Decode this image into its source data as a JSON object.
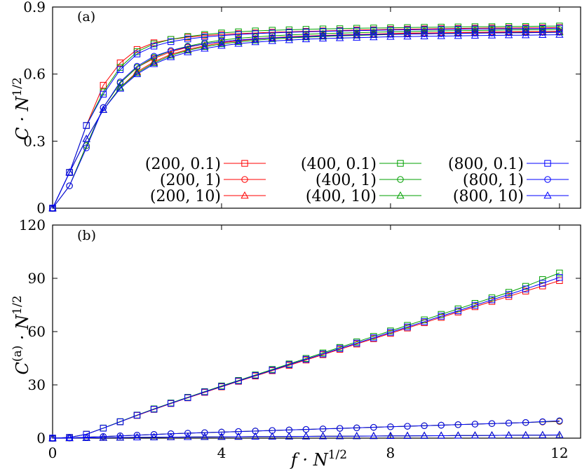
{
  "chart_data": [
    {
      "type": "line",
      "panel_label": "(a)",
      "ylabel": "C · N^1/2",
      "ylabel_parts": {
        "base": "C · N",
        "sup": "1/2"
      },
      "xlim": [
        0,
        12.5
      ],
      "ylim": [
        0,
        0.9
      ],
      "xticks": [
        0,
        4,
        8,
        12
      ],
      "yticks": [
        0,
        0.3,
        0.6,
        0.9
      ],
      "ytick_labels": [
        "0",
        "0.3",
        "0.6",
        "0.9"
      ],
      "legend": "bottom-right",
      "x": [
        0,
        0.4,
        0.8,
        1.2,
        1.6,
        2.0,
        2.4,
        2.8,
        3.2,
        3.6,
        4.0,
        4.4,
        4.8,
        5.2,
        5.6,
        6.0,
        6.4,
        6.8,
        7.2,
        7.6,
        8.0,
        8.4,
        8.8,
        9.2,
        9.6,
        10.0,
        10.4,
        10.8,
        11.2,
        11.6,
        12.0
      ],
      "series": [
        {
          "name": "(200,  0.1)",
          "color": "#ff0000",
          "marker": "square",
          "values": [
            0,
            0.16,
            0.37,
            0.55,
            0.65,
            0.71,
            0.74,
            0.755,
            0.765,
            0.772,
            0.777,
            0.781,
            0.784,
            0.787,
            0.789,
            0.791,
            0.793,
            0.795,
            0.797,
            0.798,
            0.8,
            0.801,
            0.802,
            0.803,
            0.804,
            0.805,
            0.806,
            0.806,
            0.807,
            0.807,
            0.808
          ]
        },
        {
          "name": "(200,  1)",
          "color": "#ff0000",
          "marker": "circle",
          "values": [
            0,
            0.1,
            0.28,
            0.45,
            0.56,
            0.63,
            0.67,
            0.7,
            0.72,
            0.735,
            0.745,
            0.752,
            0.758,
            0.763,
            0.767,
            0.77,
            0.773,
            0.775,
            0.777,
            0.779,
            0.781,
            0.783,
            0.784,
            0.785,
            0.786,
            0.787,
            0.788,
            0.789,
            0.79,
            0.79,
            0.791
          ]
        },
        {
          "name": "(200,  10)",
          "color": "#ff0000",
          "marker": "triangle",
          "values": [
            0,
            0.16,
            0.31,
            0.44,
            0.54,
            0.61,
            0.655,
            0.688,
            0.71,
            0.727,
            0.74,
            0.749,
            0.756,
            0.762,
            0.766,
            0.769,
            0.772,
            0.774,
            0.776,
            0.778,
            0.78,
            0.782,
            0.783,
            0.784,
            0.785,
            0.786,
            0.787,
            0.788,
            0.789,
            0.789,
            0.79
          ]
        },
        {
          "name": "(400,  0.1)",
          "color": "#00a000",
          "marker": "square",
          "values": [
            0,
            0.16,
            0.37,
            0.52,
            0.63,
            0.7,
            0.735,
            0.755,
            0.768,
            0.777,
            0.784,
            0.789,
            0.793,
            0.796,
            0.798,
            0.8,
            0.802,
            0.803,
            0.805,
            0.806,
            0.807,
            0.808,
            0.809,
            0.81,
            0.811,
            0.812,
            0.812,
            0.813,
            0.813,
            0.814,
            0.815
          ]
        },
        {
          "name": "(400,  1)",
          "color": "#00a000",
          "marker": "circle",
          "values": [
            0,
            0.1,
            0.28,
            0.45,
            0.56,
            0.63,
            0.675,
            0.705,
            0.725,
            0.74,
            0.752,
            0.76,
            0.766,
            0.771,
            0.775,
            0.778,
            0.781,
            0.783,
            0.785,
            0.787,
            0.789,
            0.79,
            0.792,
            0.793,
            0.794,
            0.795,
            0.796,
            0.797,
            0.798,
            0.798,
            0.799
          ]
        },
        {
          "name": "(400,  10)",
          "color": "#00a000",
          "marker": "triangle",
          "values": [
            0,
            0.16,
            0.31,
            0.44,
            0.54,
            0.605,
            0.65,
            0.683,
            0.706,
            0.722,
            0.735,
            0.744,
            0.751,
            0.757,
            0.762,
            0.765,
            0.768,
            0.771,
            0.773,
            0.775,
            0.777,
            0.779,
            0.78,
            0.781,
            0.782,
            0.783,
            0.784,
            0.785,
            0.786,
            0.786,
            0.787
          ]
        },
        {
          "name": "(800,  0.1)",
          "color": "#0000ff",
          "marker": "square",
          "values": [
            0,
            0.16,
            0.37,
            0.51,
            0.62,
            0.69,
            0.725,
            0.745,
            0.757,
            0.766,
            0.772,
            0.777,
            0.781,
            0.784,
            0.787,
            0.789,
            0.791,
            0.793,
            0.794,
            0.796,
            0.797,
            0.798,
            0.799,
            0.8,
            0.801,
            0.802,
            0.802,
            0.803,
            0.803,
            0.804,
            0.805
          ]
        },
        {
          "name": "(800,  1)",
          "color": "#0000ff",
          "marker": "circle",
          "values": [
            0,
            0.1,
            0.27,
            0.45,
            0.565,
            0.635,
            0.68,
            0.705,
            0.722,
            0.735,
            0.745,
            0.752,
            0.757,
            0.762,
            0.765,
            0.768,
            0.771,
            0.773,
            0.775,
            0.777,
            0.778,
            0.779,
            0.78,
            0.781,
            0.782,
            0.783,
            0.784,
            0.785,
            0.785,
            0.786,
            0.787
          ]
        },
        {
          "name": "(800,  10)",
          "color": "#0000ff",
          "marker": "triangle",
          "values": [
            0,
            0.16,
            0.31,
            0.44,
            0.535,
            0.6,
            0.645,
            0.676,
            0.698,
            0.714,
            0.727,
            0.736,
            0.743,
            0.748,
            0.752,
            0.756,
            0.759,
            0.761,
            0.763,
            0.765,
            0.767,
            0.768,
            0.769,
            0.77,
            0.771,
            0.772,
            0.773,
            0.774,
            0.774,
            0.775,
            0.776
          ]
        }
      ]
    },
    {
      "type": "line",
      "panel_label": "(b)",
      "ylabel": "C^(a) · N^1/2",
      "ylabel_parts": {
        "base": "C",
        "sup1": "(a)",
        "mid": " · N",
        "sup2": "1/2"
      },
      "xlabel": "f · N^1/2",
      "xlabel_parts": {
        "base": "f · N",
        "sup": "1/2"
      },
      "xlim": [
        0,
        12.5
      ],
      "ylim": [
        0,
        120
      ],
      "xticks": [
        0,
        4,
        8,
        12
      ],
      "xtick_labels": [
        "0",
        "4",
        "8",
        "12"
      ],
      "yticks": [
        0,
        30,
        60,
        90,
        120
      ],
      "ytick_labels": [
        "0",
        "30",
        "60",
        "90",
        "120"
      ],
      "x": [
        0,
        0.4,
        0.8,
        1.2,
        1.6,
        2.0,
        2.4,
        2.8,
        3.2,
        3.6,
        4.0,
        4.4,
        4.8,
        5.2,
        5.6,
        6.0,
        6.4,
        6.8,
        7.2,
        7.6,
        8.0,
        8.4,
        8.8,
        9.2,
        9.6,
        10.0,
        10.4,
        10.8,
        11.2,
        11.6,
        12.0
      ],
      "series": [
        {
          "name": "(200,  0.1)",
          "color": "#ff0000",
          "marker": "square",
          "values": [
            0,
            0.4,
            2.2,
            5.6,
            9.2,
            12.8,
            16.2,
            19.5,
            22.7,
            25.8,
            28.9,
            32.0,
            35.0,
            38.0,
            41.0,
            44.0,
            47.0,
            50.0,
            53.0,
            56.0,
            59.0,
            62.0,
            65.0,
            68.0,
            71.0,
            74.0,
            77.0,
            79.8,
            82.8,
            85.7,
            88.7
          ]
        },
        {
          "name": "(200,  1)",
          "color": "#ff0000",
          "marker": "circle",
          "values": [
            0,
            0.1,
            0.5,
            0.9,
            1.3,
            1.7,
            2.1,
            2.5,
            2.8,
            3.1,
            3.4,
            3.7,
            4.0,
            4.3,
            4.6,
            4.9,
            5.2,
            5.5,
            5.8,
            6.1,
            6.4,
            6.7,
            7.0,
            7.3,
            7.6,
            7.9,
            8.2,
            8.5,
            8.8,
            9.1,
            9.4
          ]
        },
        {
          "name": "(200,  10)",
          "color": "#ff0000",
          "marker": "triangle",
          "values": [
            0,
            0.05,
            0.15,
            0.25,
            0.35,
            0.45,
            0.5,
            0.6,
            0.65,
            0.7,
            0.75,
            0.8,
            0.85,
            0.9,
            0.95,
            1.0,
            1.05,
            1.1,
            1.15,
            1.2,
            1.25,
            1.3,
            1.35,
            1.4,
            1.45,
            1.5,
            1.55,
            1.6,
            1.65,
            1.7,
            1.75
          ]
        },
        {
          "name": "(400,  0.1)",
          "color": "#00a000",
          "marker": "square",
          "values": [
            0,
            0.4,
            2.2,
            5.7,
            9.3,
            13.0,
            16.5,
            19.8,
            23.0,
            26.2,
            29.4,
            32.5,
            35.6,
            38.7,
            41.8,
            44.9,
            48.0,
            51.1,
            54.2,
            57.3,
            60.4,
            63.5,
            66.6,
            69.7,
            72.8,
            75.9,
            79.0,
            82.1,
            85.5,
            89.3,
            93.0
          ]
        },
        {
          "name": "(400,  1)",
          "color": "#00a000",
          "marker": "circle",
          "values": [
            0,
            0.1,
            0.5,
            0.9,
            1.3,
            1.7,
            2.1,
            2.5,
            2.8,
            3.1,
            3.4,
            3.7,
            4.0,
            4.3,
            4.6,
            4.9,
            5.2,
            5.5,
            5.8,
            6.1,
            6.4,
            6.7,
            7.0,
            7.3,
            7.6,
            7.9,
            8.2,
            8.5,
            8.8,
            9.2,
            9.6
          ]
        },
        {
          "name": "(400,  10)",
          "color": "#00a000",
          "marker": "triangle",
          "values": [
            0,
            0.05,
            0.15,
            0.25,
            0.35,
            0.45,
            0.5,
            0.6,
            0.65,
            0.7,
            0.75,
            0.8,
            0.85,
            0.9,
            0.95,
            1.0,
            1.05,
            1.1,
            1.15,
            1.2,
            1.25,
            1.3,
            1.35,
            1.4,
            1.45,
            1.5,
            1.55,
            1.6,
            1.65,
            1.7,
            1.75
          ]
        },
        {
          "name": "(800,  0.1)",
          "color": "#0000ff",
          "marker": "square",
          "values": [
            0,
            0.4,
            2.2,
            5.6,
            9.2,
            12.9,
            16.3,
            19.6,
            22.8,
            26.0,
            29.1,
            32.2,
            35.3,
            38.3,
            41.4,
            44.4,
            47.4,
            50.5,
            53.5,
            56.5,
            59.6,
            62.6,
            65.6,
            68.7,
            71.7,
            74.8,
            77.9,
            80.9,
            84.0,
            87.2,
            90.5
          ]
        },
        {
          "name": "(800,  1)",
          "color": "#0000ff",
          "marker": "circle",
          "values": [
            0,
            0.1,
            0.5,
            0.9,
            1.3,
            1.7,
            2.1,
            2.5,
            2.8,
            3.1,
            3.4,
            3.7,
            4.0,
            4.3,
            4.6,
            4.9,
            5.2,
            5.5,
            5.8,
            6.1,
            6.4,
            6.7,
            7.0,
            7.3,
            7.6,
            7.9,
            8.2,
            8.5,
            8.8,
            9.3,
            9.8
          ]
        },
        {
          "name": "(800,  10)",
          "color": "#0000ff",
          "marker": "triangle",
          "values": [
            0,
            0.05,
            0.15,
            0.25,
            0.35,
            0.45,
            0.5,
            0.6,
            0.65,
            0.7,
            0.75,
            0.8,
            0.85,
            0.9,
            0.95,
            1.0,
            1.05,
            1.1,
            1.15,
            1.2,
            1.25,
            1.3,
            1.35,
            1.4,
            1.45,
            1.5,
            1.55,
            1.6,
            1.65,
            1.7,
            1.8
          ]
        }
      ]
    }
  ]
}
